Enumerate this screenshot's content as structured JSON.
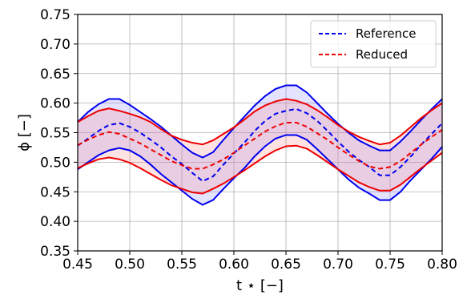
{
  "chart_data": {
    "type": "line",
    "title": "",
    "xlabel": "t ⋆ [−]",
    "ylabel": "ϕ [−]",
    "xlim": [
      0.45,
      0.8
    ],
    "ylim": [
      0.35,
      0.75
    ],
    "xticks": [
      "0.45",
      "0.50",
      "0.55",
      "0.60",
      "0.65",
      "0.70",
      "0.75",
      "0.80"
    ],
    "yticks": [
      "0.35",
      "0.40",
      "0.45",
      "0.50",
      "0.55",
      "0.60",
      "0.65",
      "0.70",
      "0.75"
    ],
    "grid": true,
    "legend_position": "top-right",
    "x": [
      0.45,
      0.46,
      0.47,
      0.48,
      0.49,
      0.5,
      0.51,
      0.52,
      0.53,
      0.54,
      0.55,
      0.56,
      0.57,
      0.58,
      0.59,
      0.6,
      0.61,
      0.62,
      0.63,
      0.64,
      0.65,
      0.66,
      0.67,
      0.68,
      0.69,
      0.7,
      0.71,
      0.72,
      0.73,
      0.74,
      0.75,
      0.76,
      0.77,
      0.78,
      0.79,
      0.8
    ],
    "series": [
      {
        "name": "Reference",
        "color": "#0000ee",
        "values": [
          0.528,
          0.54,
          0.553,
          0.563,
          0.566,
          0.56,
          0.55,
          0.538,
          0.525,
          0.51,
          0.497,
          0.482,
          0.468,
          0.476,
          0.496,
          0.515,
          0.533,
          0.553,
          0.57,
          0.582,
          0.587,
          0.59,
          0.583,
          0.57,
          0.553,
          0.535,
          0.518,
          0.504,
          0.492,
          0.478,
          0.478,
          0.492,
          0.51,
          0.53,
          0.548,
          0.566
        ],
        "upper": [
          0.568,
          0.585,
          0.598,
          0.607,
          0.607,
          0.597,
          0.585,
          0.573,
          0.56,
          0.545,
          0.53,
          0.516,
          0.508,
          0.517,
          0.538,
          0.558,
          0.577,
          0.596,
          0.612,
          0.624,
          0.63,
          0.63,
          0.618,
          0.6,
          0.582,
          0.565,
          0.55,
          0.537,
          0.528,
          0.52,
          0.52,
          0.535,
          0.553,
          0.572,
          0.59,
          0.607
        ],
        "lower": [
          0.488,
          0.5,
          0.512,
          0.52,
          0.524,
          0.52,
          0.51,
          0.496,
          0.48,
          0.466,
          0.452,
          0.438,
          0.428,
          0.436,
          0.455,
          0.473,
          0.49,
          0.51,
          0.527,
          0.54,
          0.546,
          0.546,
          0.538,
          0.522,
          0.505,
          0.488,
          0.471,
          0.457,
          0.447,
          0.436,
          0.436,
          0.45,
          0.47,
          0.488,
          0.506,
          0.526
        ]
      },
      {
        "name": "Reduced",
        "color": "#ee0000",
        "values": [
          0.529,
          0.538,
          0.546,
          0.551,
          0.548,
          0.54,
          0.532,
          0.522,
          0.512,
          0.502,
          0.495,
          0.489,
          0.489,
          0.496,
          0.505,
          0.516,
          0.528,
          0.54,
          0.552,
          0.561,
          0.567,
          0.567,
          0.56,
          0.549,
          0.538,
          0.525,
          0.513,
          0.502,
          0.493,
          0.489,
          0.492,
          0.502,
          0.516,
          0.53,
          0.543,
          0.555
        ],
        "upper": [
          0.568,
          0.578,
          0.587,
          0.591,
          0.587,
          0.582,
          0.576,
          0.568,
          0.556,
          0.545,
          0.538,
          0.533,
          0.53,
          0.537,
          0.548,
          0.559,
          0.572,
          0.586,
          0.596,
          0.603,
          0.607,
          0.604,
          0.598,
          0.588,
          0.576,
          0.563,
          0.552,
          0.543,
          0.536,
          0.53,
          0.533,
          0.545,
          0.56,
          0.575,
          0.588,
          0.6
        ],
        "lower": [
          0.49,
          0.498,
          0.505,
          0.508,
          0.505,
          0.499,
          0.49,
          0.48,
          0.47,
          0.461,
          0.455,
          0.449,
          0.447,
          0.455,
          0.464,
          0.475,
          0.486,
          0.498,
          0.51,
          0.52,
          0.527,
          0.528,
          0.523,
          0.512,
          0.5,
          0.488,
          0.477,
          0.466,
          0.458,
          0.452,
          0.452,
          0.462,
          0.476,
          0.49,
          0.503,
          0.516
        ]
      }
    ]
  }
}
